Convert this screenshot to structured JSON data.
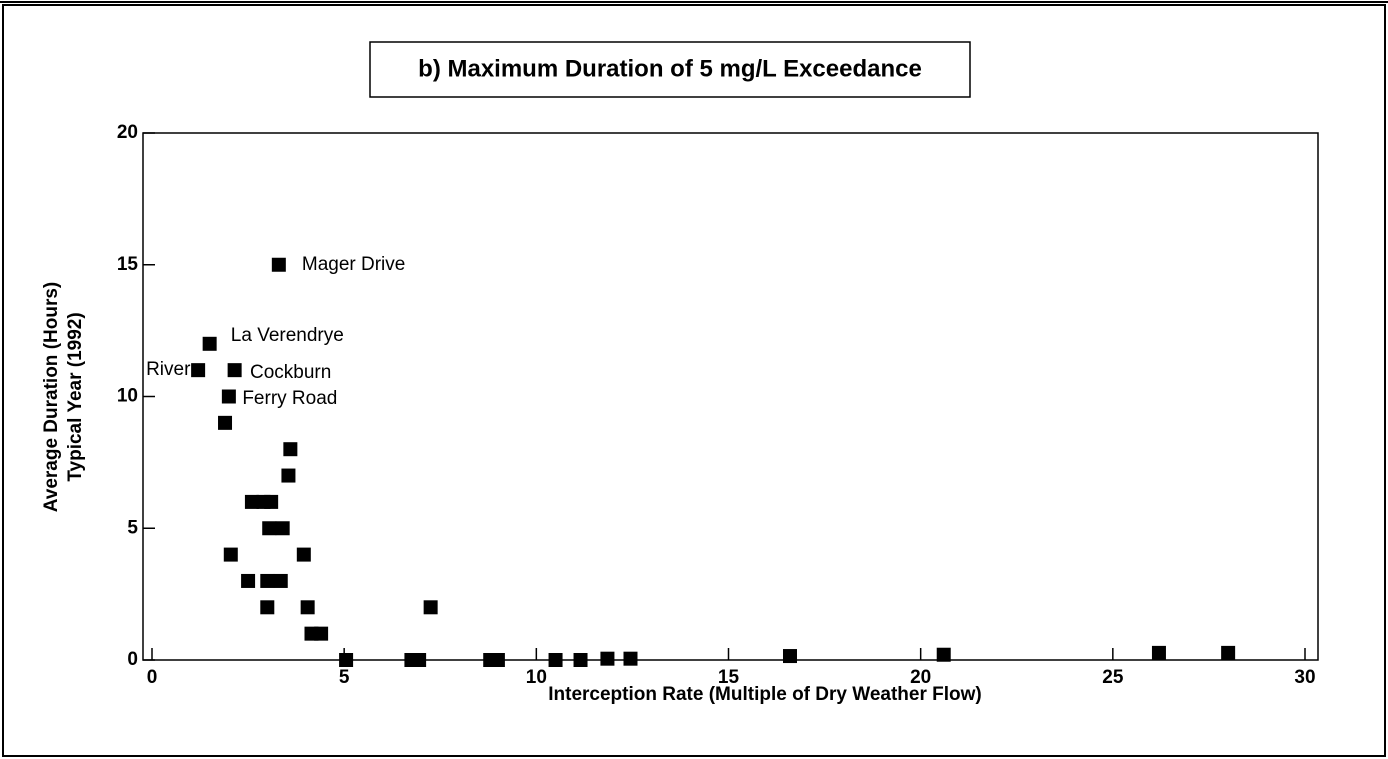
{
  "chart_data": {
    "type": "scatter",
    "title": "b) Maximum Duration of 5 mg/L Exceedance",
    "x_label": "Interception Rate (Multiple of Dry Weather Flow)",
    "y_label": [
      "Average Duration (Hours)",
      "Typical Year (1992)"
    ],
    "series": [
      {
        "color": "#000000",
        "x": [
          3.3,
          1.5,
          1.2,
          2.15,
          2.0,
          1.9,
          3.6,
          3.55,
          2.6,
          2.9,
          3.1,
          3.05,
          3.4,
          2.05,
          3.95,
          2.5,
          3.0,
          3.35,
          3.0,
          4.05,
          4.15,
          4.4,
          7.25,
          5.05,
          6.75,
          6.95,
          8.8,
          9.0,
          10.5,
          11.15,
          11.85,
          12.45,
          16.6,
          20.6,
          26.2,
          28.0
        ],
        "values": [
          15,
          12,
          11,
          11,
          10,
          9,
          8,
          7,
          6,
          6,
          6,
          5,
          5,
          4,
          4,
          3,
          3,
          3,
          2,
          2,
          1,
          1,
          2,
          0,
          0,
          0,
          0,
          0,
          0,
          0,
          0.05,
          0.05,
          0.15,
          0.2,
          0.27,
          0.27
        ]
      }
    ],
    "annotations": [
      {
        "text": "Mager Drive",
        "x": 3.9,
        "y": 15,
        "align": "left"
      },
      {
        "text": "La Verendrye",
        "x": 2.05,
        "y": 12.3,
        "align": "left"
      },
      {
        "text": "River",
        "x": 1.0,
        "y": 11,
        "align": "right"
      },
      {
        "text": "Cockburn",
        "x": 2.55,
        "y": 10.9,
        "align": "left"
      },
      {
        "text": "Ferry Road",
        "x": 2.35,
        "y": 9.9,
        "align": "left"
      }
    ],
    "xlim": [
      0,
      30
    ],
    "xticks": [
      0,
      5,
      10,
      15,
      20,
      25,
      30
    ],
    "ylim": [
      0,
      20
    ],
    "yticks": [
      0,
      5,
      10,
      15,
      20
    ]
  }
}
